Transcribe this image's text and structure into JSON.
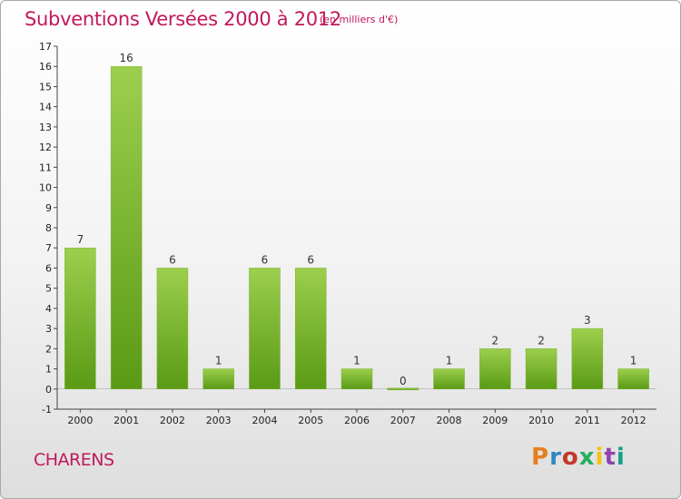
{
  "header": {
    "title": "Subventions Versées 2000 à 2012",
    "subtitle": "(en milliers d'€)"
  },
  "footer": {
    "town": "CHARENS",
    "logo": "Proxiti",
    "logo_colors": [
      "#e67e22",
      "#2e86c1",
      "#c0392b",
      "#27ae60",
      "#f1c40f",
      "#8e44ad",
      "#16a085"
    ]
  },
  "colors": {
    "bar_top": "#9ccf4d",
    "bar_bottom": "#5a9a14",
    "title": "#c2185b"
  },
  "chart_data": {
    "type": "bar",
    "title": "Subventions Versées 2000 à 2012",
    "categories": [
      "2000",
      "2001",
      "2002",
      "2003",
      "2004",
      "2005",
      "2006",
      "2007",
      "2008",
      "2009",
      "2010",
      "2011",
      "2012"
    ],
    "values": [
      7,
      16,
      6,
      1,
      6,
      6,
      1,
      0,
      1,
      2,
      2,
      3,
      1
    ],
    "ylim": [
      -1,
      17
    ],
    "yticks": [
      -1,
      0,
      1,
      2,
      3,
      4,
      5,
      6,
      7,
      8,
      9,
      10,
      11,
      12,
      13,
      14,
      15,
      16,
      17
    ],
    "grid": false
  }
}
